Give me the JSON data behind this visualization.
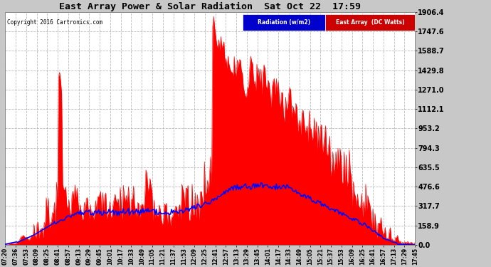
{
  "title": "East Array Power & Solar Radiation  Sat Oct 22  17:59",
  "copyright": "Copyright 2016 Cartronics.com",
  "legend_radiation": "Radiation (w/m2)",
  "legend_east": "East Array  (DC Watts)",
  "yticks": [
    0.0,
    158.9,
    317.7,
    476.6,
    635.5,
    794.3,
    953.2,
    1112.1,
    1271.0,
    1429.8,
    1588.7,
    1747.6,
    1906.4
  ],
  "ymax": 1906.4,
  "fig_bg": "#c8c8c8",
  "plot_bg": "#ffffff",
  "grid_color": "#aaaaaa",
  "title_color": "#000000",
  "radiation_color": "#0000ff",
  "east_array_color": "#ff0000",
  "legend_bg": "#000080",
  "x_labels": [
    "07:20",
    "07:36",
    "07:53",
    "08:09",
    "08:25",
    "08:41",
    "08:57",
    "09:13",
    "09:29",
    "09:45",
    "10:01",
    "10:17",
    "10:33",
    "10:49",
    "11:05",
    "11:21",
    "11:37",
    "11:53",
    "12:09",
    "12:25",
    "12:41",
    "12:57",
    "13:13",
    "13:29",
    "13:45",
    "14:01",
    "14:17",
    "14:33",
    "14:49",
    "15:05",
    "15:21",
    "15:37",
    "15:53",
    "16:09",
    "16:25",
    "16:41",
    "16:57",
    "17:13",
    "17:29",
    "17:45"
  ]
}
